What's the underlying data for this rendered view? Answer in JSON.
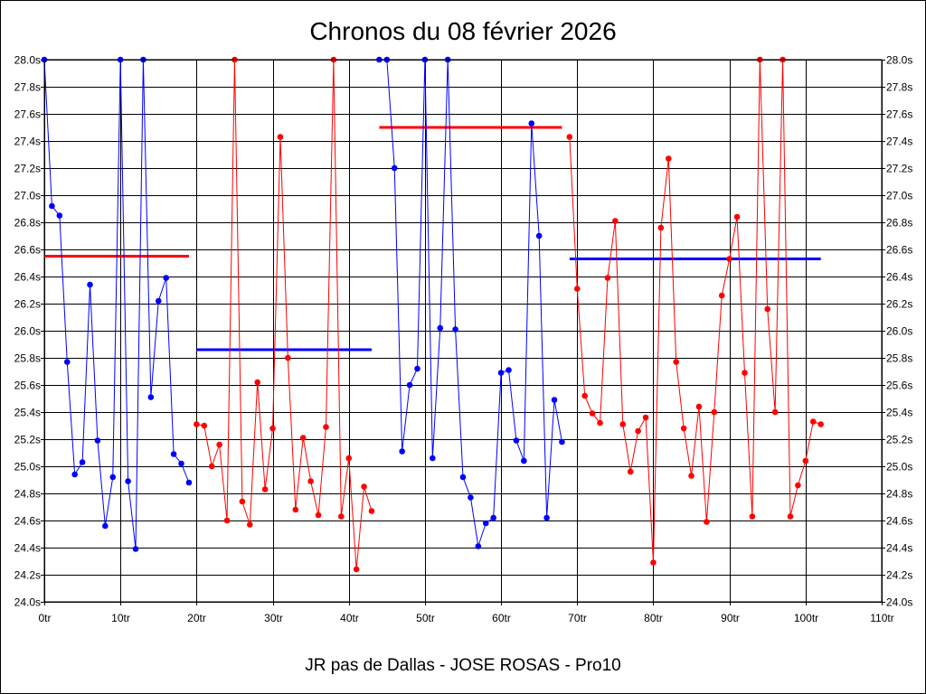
{
  "chart_data": {
    "type": "line",
    "title": "Chronos du 08 février 2026",
    "subtitle": "JR pas de Dallas - JOSE ROSAS - Pro10",
    "x_unit_suffix": "tr",
    "y_unit_suffix": "s",
    "xlim": [
      0,
      110
    ],
    "ylim": [
      24.0,
      28.0
    ],
    "x_ticks": [
      0,
      10,
      20,
      30,
      40,
      50,
      60,
      70,
      80,
      90,
      100,
      110
    ],
    "y_ticks": [
      24.0,
      24.2,
      24.4,
      24.6,
      24.8,
      25.0,
      25.2,
      25.4,
      25.6,
      25.8,
      26.0,
      26.2,
      26.4,
      26.6,
      26.8,
      27.0,
      27.2,
      27.4,
      27.6,
      27.8,
      28.0
    ],
    "x_tick_labels": [
      "0tr",
      "10tr",
      "20tr",
      "30tr",
      "40tr",
      "50tr",
      "60tr",
      "70tr",
      "80tr",
      "90tr",
      "100tr",
      "110tr"
    ],
    "y_tick_labels": [
      "24.0s",
      "24.2s",
      "24.4s",
      "24.6s",
      "24.8s",
      "25.0s",
      "25.2s",
      "25.4s",
      "25.6s",
      "25.8s",
      "26.0s",
      "26.2s",
      "26.4s",
      "26.6s",
      "26.8s",
      "27.0s",
      "27.2s",
      "27.4s",
      "27.6s",
      "27.8s",
      "28.0s"
    ],
    "grid": true,
    "colors": {
      "blue": "#0000ff",
      "red": "#ff0000"
    },
    "series": [
      {
        "color": "#0000ff",
        "x": [
          0,
          1,
          2,
          3,
          4,
          5,
          6,
          7,
          8,
          9,
          10,
          11,
          12,
          13,
          14,
          15,
          16,
          17,
          18,
          19
        ],
        "y": [
          28.0,
          26.92,
          26.85,
          25.77,
          24.94,
          25.03,
          26.34,
          25.19,
          24.56,
          24.92,
          28.0,
          24.89,
          24.39,
          28.0,
          25.51,
          26.22,
          26.39,
          25.09,
          25.02,
          24.88
        ]
      },
      {
        "color": "#ff0000",
        "x": [
          20,
          21,
          22,
          23,
          24,
          25,
          26,
          27,
          28,
          29,
          30,
          31,
          32,
          33,
          34,
          35,
          36,
          37,
          38,
          39,
          40,
          41,
          42,
          43
        ],
        "y": [
          25.31,
          25.3,
          25.0,
          25.16,
          24.6,
          28.0,
          24.74,
          24.57,
          25.62,
          24.83,
          25.28,
          27.43,
          25.8,
          24.68,
          25.21,
          24.89,
          24.64,
          25.29,
          28.0,
          24.63,
          25.06,
          24.24,
          24.85,
          24.67
        ]
      },
      {
        "color": "#0000ff",
        "x": [
          44,
          45,
          46,
          47,
          48,
          49,
          50,
          51,
          52,
          53,
          54,
          55,
          56,
          57,
          58,
          59,
          60,
          61,
          62,
          63,
          64,
          65,
          66,
          67,
          68
        ],
        "y": [
          28.0,
          28.0,
          27.2,
          25.11,
          25.6,
          25.72,
          28.0,
          25.06,
          26.02,
          28.0,
          26.01,
          24.92,
          24.77,
          24.41,
          24.58,
          24.62,
          25.69,
          25.71,
          25.19,
          25.04,
          27.53,
          26.7,
          24.62,
          25.49,
          25.18
        ]
      },
      {
        "color": "#ff0000",
        "x": [
          69,
          70,
          71,
          72,
          73,
          74,
          75,
          76,
          77,
          78,
          79,
          80,
          81,
          82,
          83,
          84,
          85,
          86,
          87,
          88,
          89,
          90,
          91,
          92,
          93,
          94,
          95,
          96,
          97,
          98,
          99,
          100,
          101,
          102
        ],
        "y": [
          27.43,
          26.31,
          25.52,
          25.39,
          25.32,
          26.39,
          26.81,
          25.31,
          24.96,
          25.26,
          25.36,
          24.29,
          26.76,
          27.27,
          25.77,
          25.28,
          24.93,
          25.44,
          24.59,
          25.4,
          26.26,
          26.53,
          26.84,
          25.69,
          24.63,
          28.0,
          26.16,
          25.4,
          28.0,
          24.63,
          24.86,
          25.04,
          25.33,
          25.31
        ]
      }
    ],
    "averages": [
      {
        "color": "#ff0000",
        "x_start": 0,
        "x_end": 19,
        "y": 26.55
      },
      {
        "color": "#0000ff",
        "x_start": 20,
        "x_end": 43,
        "y": 25.86
      },
      {
        "color": "#ff0000",
        "x_start": 44,
        "x_end": 68,
        "y": 27.5
      },
      {
        "color": "#0000ff",
        "x_start": 69,
        "x_end": 102,
        "y": 26.53
      }
    ]
  }
}
